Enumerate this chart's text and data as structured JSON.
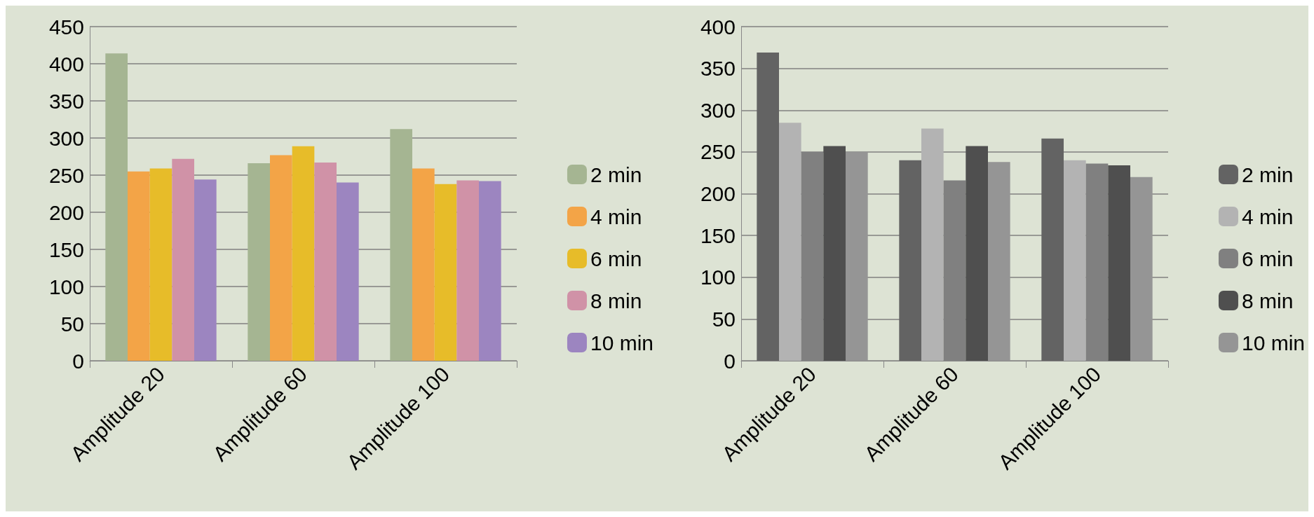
{
  "chart_data": [
    {
      "type": "bar",
      "categories": [
        "Amplitude 20",
        "Amplitude 60",
        "Amplitude 100"
      ],
      "series": [
        {
          "name": "2 min",
          "color": "#a5b592",
          "values": [
            414,
            266,
            312
          ]
        },
        {
          "name": "4 min",
          "color": "#f3a447",
          "values": [
            255,
            277,
            259
          ]
        },
        {
          "name": "6 min",
          "color": "#e7bc29",
          "values": [
            259,
            289,
            238
          ]
        },
        {
          "name": "8 min",
          "color": "#d092a7",
          "values": [
            272,
            267,
            243
          ]
        },
        {
          "name": "10 min",
          "color": "#9c85c0",
          "values": [
            244,
            240,
            242
          ]
        }
      ],
      "ylim": [
        0,
        450
      ],
      "yticks": [
        0,
        50,
        100,
        150,
        200,
        250,
        300,
        350,
        400,
        450
      ],
      "grid": "y",
      "legend": "right"
    },
    {
      "type": "bar",
      "categories": [
        "Amplitude 20",
        "Amplitude 60",
        "Amplitude 100"
      ],
      "series": [
        {
          "name": "2 min",
          "color": "#636363",
          "values": [
            369,
            240,
            266
          ]
        },
        {
          "name": "4 min",
          "color": "#b3b3b3",
          "values": [
            285,
            278,
            240
          ]
        },
        {
          "name": "6 min",
          "color": "#808080",
          "values": [
            250,
            216,
            236
          ]
        },
        {
          "name": "8 min",
          "color": "#4f4f4f",
          "values": [
            257,
            257,
            234
          ]
        },
        {
          "name": "10 min",
          "color": "#959595",
          "values": [
            250,
            238,
            220
          ]
        }
      ],
      "ylim": [
        0,
        400
      ],
      "yticks": [
        0,
        50,
        100,
        150,
        200,
        250,
        300,
        350,
        400
      ],
      "grid": "y",
      "legend": "right"
    }
  ]
}
